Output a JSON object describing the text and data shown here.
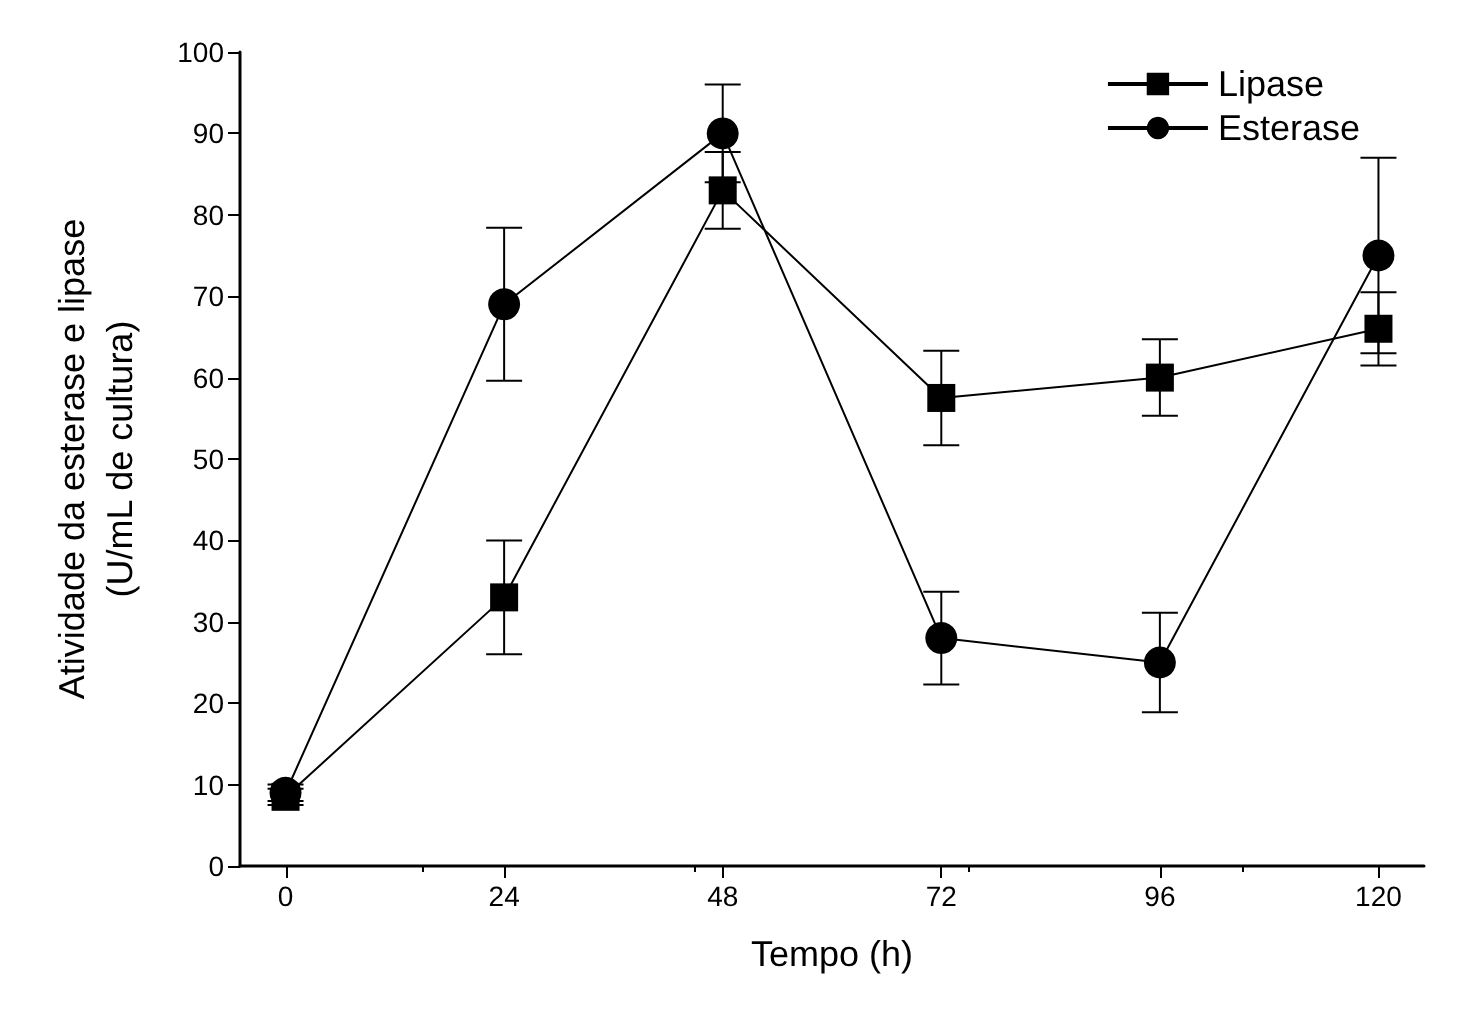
{
  "chart_data": {
    "type": "line",
    "xlabel": "Tempo (h)",
    "ylabel": "Atividade da esterase e lipase\n(U/mL de cultura)",
    "x": [
      0,
      24,
      48,
      72,
      96,
      120
    ],
    "series": [
      {
        "name": "Lipase",
        "color": "#000000",
        "marker": "square",
        "values": [
          8.5,
          33,
          83,
          57.5,
          60,
          66
        ],
        "errors": [
          1,
          7,
          4.7,
          5.8,
          4.7,
          4.5
        ]
      },
      {
        "name": "Esterase",
        "color": "#000000",
        "marker": "circle",
        "values": [
          9,
          69,
          90,
          28,
          25,
          75
        ],
        "errors": [
          1,
          9.4,
          6,
          5.7,
          6.1,
          12
        ]
      }
    ],
    "xlim": [
      -5,
      125
    ],
    "xticks": [
      0,
      24,
      48,
      72,
      96,
      120
    ],
    "ylim": [
      0,
      100
    ],
    "yticks": [
      0,
      10,
      20,
      30,
      40,
      50,
      60,
      70,
      80,
      90,
      100
    ],
    "grid": false,
    "legend": "top right",
    "line_style": "solid"
  }
}
